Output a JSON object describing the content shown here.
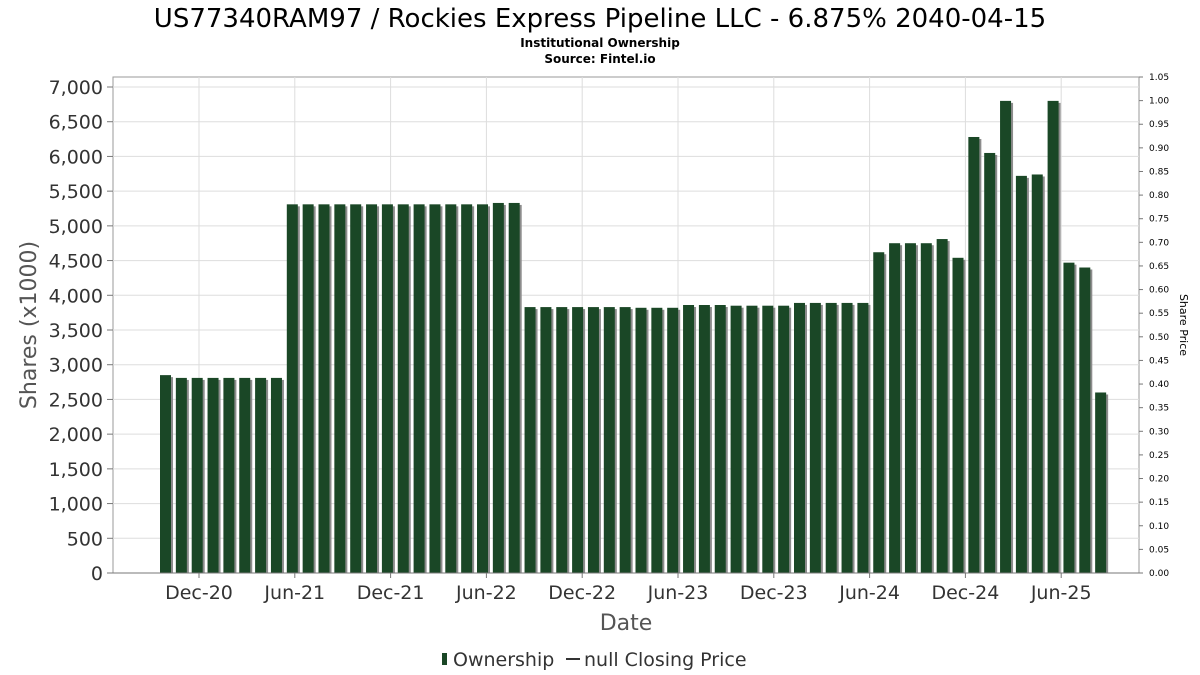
{
  "chart_data": {
    "type": "bar",
    "title": "US77340RAM97 / Rockies Express Pipeline LLC - 6.875% 2040-04-15",
    "subtitle_lines": [
      "Institutional Ownership",
      "Source: Fintel.io"
    ],
    "xlabel": "Date",
    "ylabel": "Shares (x1000)",
    "y2label": "Share Price",
    "ylim": [
      0,
      7000
    ],
    "y_ticks": [
      "0",
      "500",
      "1,000",
      "1,500",
      "2,000",
      "2,500",
      "3,000",
      "3,500",
      "4,000",
      "4,500",
      "5,000",
      "5,500",
      "6,000",
      "6,500",
      "7,000"
    ],
    "y2lim": [
      0,
      1.05
    ],
    "y2_ticks": [
      "0.00",
      "0.05",
      "0.10",
      "0.15",
      "0.20",
      "0.25",
      "0.30",
      "0.35",
      "0.40",
      "0.45",
      "0.50",
      "0.55",
      "0.60",
      "0.65",
      "0.70",
      "0.75",
      "0.80",
      "0.85",
      "0.90",
      "0.95",
      "1.00",
      "1.05"
    ],
    "x_ticks": [
      "Dec-20",
      "Jun-21",
      "Dec-21",
      "Jun-22",
      "Dec-22",
      "Jun-23",
      "Dec-23",
      "Jun-24",
      "Dec-24",
      "Jun-25"
    ],
    "grid": true,
    "legend_position": "bottom-center",
    "legend": [
      "Ownership",
      "null Closing Price"
    ],
    "bar_color": "#1a4726",
    "shadow_color": "#8c8c8c",
    "grid_color": "#dddddd",
    "series": [
      {
        "name": "Ownership",
        "values": [
          2850,
          2810,
          2810,
          2810,
          2810,
          2810,
          2810,
          2810,
          5310,
          5310,
          5310,
          5310,
          5310,
          5310,
          5310,
          5310,
          5310,
          5310,
          5310,
          5310,
          5310,
          5330,
          5330,
          3830,
          3830,
          3830,
          3830,
          3830,
          3830,
          3830,
          3820,
          3820,
          3820,
          3860,
          3860,
          3860,
          3850,
          3850,
          3850,
          3850,
          3890,
          3890,
          3890,
          3890,
          3890,
          4620,
          4750,
          4750,
          4750,
          4810,
          4540,
          6280,
          6050,
          6800,
          5720,
          5740,
          6800,
          4470,
          4400,
          2600
        ]
      }
    ]
  }
}
